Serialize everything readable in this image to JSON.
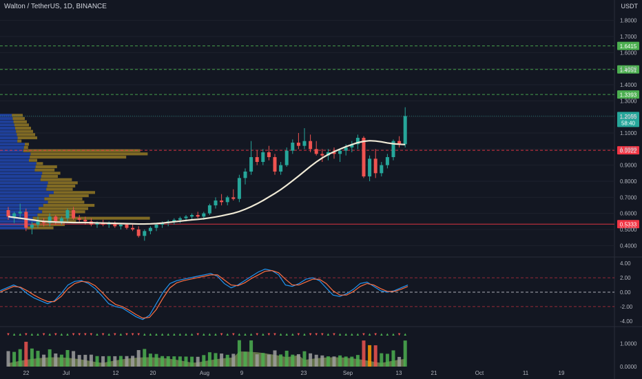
{
  "header": {
    "symbol_title": "Walton / TetherUS, 1D, BINANCE",
    "quote_currency": "USDT"
  },
  "colors": {
    "background": "#131722",
    "grid": "#1e222d",
    "up": "#26a69a",
    "down": "#ef5350",
    "ma": "#f0ead6",
    "vp_blue": "#2962ff",
    "vp_gold": "#c9a227",
    "hline_green": "#4caf50",
    "hline_red": "#f23645",
    "osc_blue": "#2196f3",
    "osc_orange": "#ff7043"
  },
  "chart_data": [
    {
      "type": "candlestick",
      "title": "Walton / TetherUS, 1D, BINANCE",
      "ylim": [
        0.35,
        1.85
      ],
      "y_ticks": [
        "1.8000",
        "1.7000",
        "1.6000",
        "1.5000",
        "1.4000",
        "1.3000",
        "1.2000",
        "1.1000",
        "1.0000",
        "0.9000",
        "0.8000",
        "0.7000",
        "0.6000",
        "0.5000",
        "0.4000"
      ],
      "x_ticks": [
        "22",
        "Jul",
        "12",
        "20",
        "Aug",
        "9",
        "23",
        "Sep",
        "13",
        "21",
        "Oct",
        "11",
        "19"
      ],
      "horizontal_levels": [
        {
          "value": 1.6415,
          "label": "1.6415",
          "style": "dashed",
          "color": "#4caf50"
        },
        {
          "value": 1.4951,
          "label": "1.4951",
          "style": "dashed",
          "color": "#4caf50"
        },
        {
          "value": 1.3393,
          "label": "1.3393",
          "style": "dashed",
          "color": "#4caf50"
        },
        {
          "value": 0.9922,
          "label": "0.9922",
          "style": "dashed",
          "color": "#f23645"
        },
        {
          "value": 0.5333,
          "label": "0.5333",
          "style": "solid",
          "color": "#f23645"
        }
      ],
      "last_price": {
        "value": 1.2055,
        "label": "1.2055",
        "countdown": "58:40"
      },
      "candles": [
        [
          0.62,
          0.64,
          0.56,
          0.58
        ],
        [
          0.58,
          0.61,
          0.54,
          0.6
        ],
        [
          0.6,
          0.66,
          0.57,
          0.61
        ],
        [
          0.61,
          0.63,
          0.49,
          0.51
        ],
        [
          0.51,
          0.55,
          0.47,
          0.53
        ],
        [
          0.53,
          0.58,
          0.51,
          0.55
        ],
        [
          0.55,
          0.57,
          0.52,
          0.54
        ],
        [
          0.54,
          0.6,
          0.52,
          0.58
        ],
        [
          0.58,
          0.59,
          0.53,
          0.55
        ],
        [
          0.55,
          0.58,
          0.53,
          0.57
        ],
        [
          0.57,
          0.63,
          0.55,
          0.62
        ],
        [
          0.62,
          0.64,
          0.56,
          0.57
        ],
        [
          0.57,
          0.59,
          0.54,
          0.56
        ],
        [
          0.56,
          0.58,
          0.53,
          0.55
        ],
        [
          0.55,
          0.57,
          0.52,
          0.53
        ],
        [
          0.53,
          0.55,
          0.51,
          0.54
        ],
        [
          0.54,
          0.56,
          0.52,
          0.53
        ],
        [
          0.53,
          0.55,
          0.51,
          0.54
        ],
        [
          0.54,
          0.55,
          0.51,
          0.52
        ],
        [
          0.52,
          0.54,
          0.5,
          0.53
        ],
        [
          0.53,
          0.54,
          0.5,
          0.51
        ],
        [
          0.51,
          0.53,
          0.49,
          0.5
        ],
        [
          0.5,
          0.52,
          0.45,
          0.46
        ],
        [
          0.46,
          0.5,
          0.43,
          0.49
        ],
        [
          0.49,
          0.52,
          0.47,
          0.51
        ],
        [
          0.51,
          0.54,
          0.49,
          0.53
        ],
        [
          0.53,
          0.55,
          0.51,
          0.54
        ],
        [
          0.54,
          0.56,
          0.52,
          0.55
        ],
        [
          0.55,
          0.57,
          0.53,
          0.56
        ],
        [
          0.56,
          0.58,
          0.54,
          0.57
        ],
        [
          0.57,
          0.59,
          0.55,
          0.58
        ],
        [
          0.58,
          0.6,
          0.56,
          0.59
        ],
        [
          0.59,
          0.61,
          0.57,
          0.58
        ],
        [
          0.58,
          0.61,
          0.56,
          0.6
        ],
        [
          0.6,
          0.66,
          0.59,
          0.65
        ],
        [
          0.65,
          0.7,
          0.63,
          0.68
        ],
        [
          0.68,
          0.72,
          0.65,
          0.67
        ],
        [
          0.67,
          0.71,
          0.65,
          0.7
        ],
        [
          0.7,
          0.75,
          0.68,
          0.69
        ],
        [
          0.69,
          0.84,
          0.67,
          0.82
        ],
        [
          0.82,
          0.88,
          0.78,
          0.86
        ],
        [
          0.86,
          1.05,
          0.84,
          0.95
        ],
        [
          0.95,
          0.99,
          0.9,
          0.92
        ],
        [
          0.92,
          1.0,
          0.9,
          0.98
        ],
        [
          0.98,
          1.02,
          0.93,
          0.95
        ],
        [
          0.95,
          0.97,
          0.84,
          0.86
        ],
        [
          0.86,
          0.92,
          0.84,
          0.9
        ],
        [
          0.9,
          1.01,
          0.89,
          0.99
        ],
        [
          0.99,
          1.06,
          0.97,
          1.04
        ],
        [
          1.04,
          1.1,
          1.0,
          1.02
        ],
        [
          1.02,
          1.13,
          1.0,
          1.05
        ],
        [
          1.05,
          1.09,
          0.98,
          1.0
        ],
        [
          1.0,
          1.05,
          0.96,
          0.97
        ],
        [
          0.97,
          1.0,
          0.92,
          0.96
        ],
        [
          0.96,
          1.0,
          0.93,
          0.98
        ],
        [
          0.98,
          1.01,
          0.94,
          0.97
        ],
        [
          0.97,
          1.0,
          0.92,
          0.99
        ],
        [
          0.99,
          1.03,
          0.96,
          1.01
        ],
        [
          1.01,
          1.05,
          0.98,
          1.03
        ],
        [
          1.03,
          1.09,
          1.0,
          1.07
        ],
        [
          1.07,
          1.08,
          0.82,
          0.83
        ],
        [
          0.83,
          0.96,
          0.8,
          0.94
        ],
        [
          0.94,
          1.0,
          0.82,
          0.85
        ],
        [
          0.85,
          0.92,
          0.83,
          0.9
        ],
        [
          0.9,
          0.97,
          0.88,
          0.95
        ],
        [
          0.95,
          1.06,
          0.93,
          1.05
        ],
        [
          1.05,
          1.08,
          1.01,
          1.03
        ],
        [
          1.03,
          1.26,
          1.01,
          1.2055
        ]
      ],
      "ma": [
        0.58,
        0.575,
        0.57,
        0.565,
        0.56,
        0.555,
        0.55,
        0.548,
        0.546,
        0.545,
        0.544,
        0.543,
        0.543,
        0.543,
        0.542,
        0.541,
        0.54,
        0.539,
        0.538,
        0.537,
        0.536,
        0.535,
        0.534,
        0.534,
        0.535,
        0.537,
        0.54,
        0.544,
        0.548,
        0.552,
        0.556,
        0.56,
        0.563,
        0.567,
        0.572,
        0.578,
        0.585,
        0.593,
        0.601,
        0.612,
        0.626,
        0.642,
        0.66,
        0.68,
        0.702,
        0.724,
        0.748,
        0.775,
        0.803,
        0.832,
        0.862,
        0.892,
        0.92,
        0.945,
        0.966,
        0.984,
        1.0,
        1.015,
        1.028,
        1.04,
        1.048,
        1.052,
        1.05,
        1.045,
        1.038,
        1.033,
        1.03,
        1.028
      ]
    },
    {
      "type": "line",
      "title": "",
      "ylim": [
        -4.4,
        4.4
      ],
      "y_ticks": [
        "4.00",
        "2.00",
        "0.00",
        "-2.00",
        "-4.00"
      ],
      "levels": [
        2.0,
        0.0,
        -2.0
      ],
      "series": [
        {
          "color": "#2196f3",
          "values": [
            0.2,
            0.6,
            1.0,
            0.6,
            -0.2,
            -0.8,
            -1.2,
            -1.6,
            -1.2,
            -0.2,
            1.0,
            1.5,
            1.6,
            1.2,
            0.5,
            -0.5,
            -1.6,
            -2.0,
            -2.2,
            -2.8,
            -3.4,
            -3.8,
            -3.2,
            -1.6,
            0.0,
            1.2,
            1.6,
            1.8,
            2.0,
            2.2,
            2.4,
            2.6,
            2.2,
            1.2,
            0.6,
            1.0,
            1.6,
            2.2,
            2.8,
            3.2,
            3.0,
            2.4,
            1.0,
            0.8,
            1.2,
            1.8,
            2.0,
            1.6,
            0.6,
            -0.4,
            -0.6,
            -0.2,
            0.4,
            1.2,
            1.4,
            0.8,
            0.2,
            0.0,
            0.2,
            0.6,
            1.0
          ]
        },
        {
          "color": "#ff7043",
          "values": [
            0.0,
            0.4,
            0.8,
            0.7,
            0.2,
            -0.4,
            -0.9,
            -1.3,
            -1.3,
            -0.6,
            0.5,
            1.2,
            1.5,
            1.4,
            0.9,
            0.0,
            -1.0,
            -1.7,
            -2.0,
            -2.5,
            -3.1,
            -3.6,
            -3.5,
            -2.4,
            -0.8,
            0.6,
            1.3,
            1.6,
            1.8,
            2.0,
            2.2,
            2.4,
            2.4,
            1.7,
            1.0,
            0.9,
            1.3,
            1.9,
            2.4,
            2.9,
            3.0,
            2.7,
            1.8,
            1.0,
            1.0,
            1.4,
            1.8,
            1.8,
            1.2,
            0.2,
            -0.4,
            -0.4,
            0.1,
            0.8,
            1.2,
            1.0,
            0.5,
            0.1,
            0.1,
            0.4,
            0.8
          ]
        }
      ]
    },
    {
      "type": "bar",
      "title": "",
      "ylim": [
        0,
        1.6
      ],
      "y_ticks": [
        "1.0000",
        "0.0000"
      ]
    }
  ]
}
